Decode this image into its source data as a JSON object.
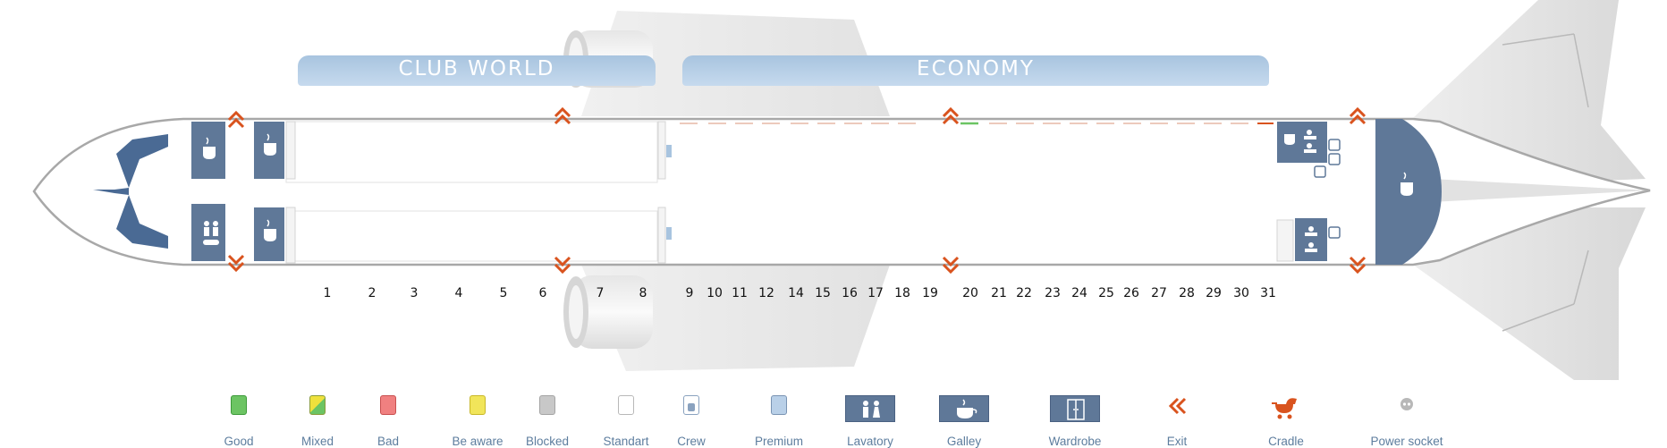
{
  "cabins": {
    "club_world": "CLUB WORLD",
    "economy": "ECONOMY"
  },
  "rows": [
    "1",
    "2",
    "3",
    "4",
    "5",
    "6",
    "7",
    "8",
    "9",
    "10",
    "11",
    "12",
    "14",
    "15",
    "16",
    "17",
    "18",
    "19",
    "20",
    "21",
    "22",
    "23",
    "24",
    "25",
    "26",
    "27",
    "28",
    "29",
    "30",
    "31"
  ],
  "legend": {
    "good": "Good",
    "mixed": "Mixed",
    "bad": "Bad",
    "be_aware": "Be aware",
    "blocked": "Blocked",
    "standart": "Standart",
    "crew": "Crew",
    "premium": "Premium",
    "lavatory": "Lavatory",
    "galley": "Galley",
    "wardrobe": "Wardrobe",
    "exit": "Exit",
    "cradle": "Cradle",
    "power_socket": "Power socket"
  },
  "colors": {
    "facility": "#5f7898",
    "exit": "#d9531e",
    "banner": "#b6cfe8",
    "legend_text": "#5d7d9e",
    "good": "#6cc463",
    "bad": "#f08080",
    "be_aware": "#f1e55a",
    "blocked": "#c8c8c8"
  },
  "icons": [
    "galley-icon",
    "lavatory-icon",
    "wardrobe-icon",
    "exit-icon",
    "cradle-icon",
    "power-socket-icon"
  ]
}
